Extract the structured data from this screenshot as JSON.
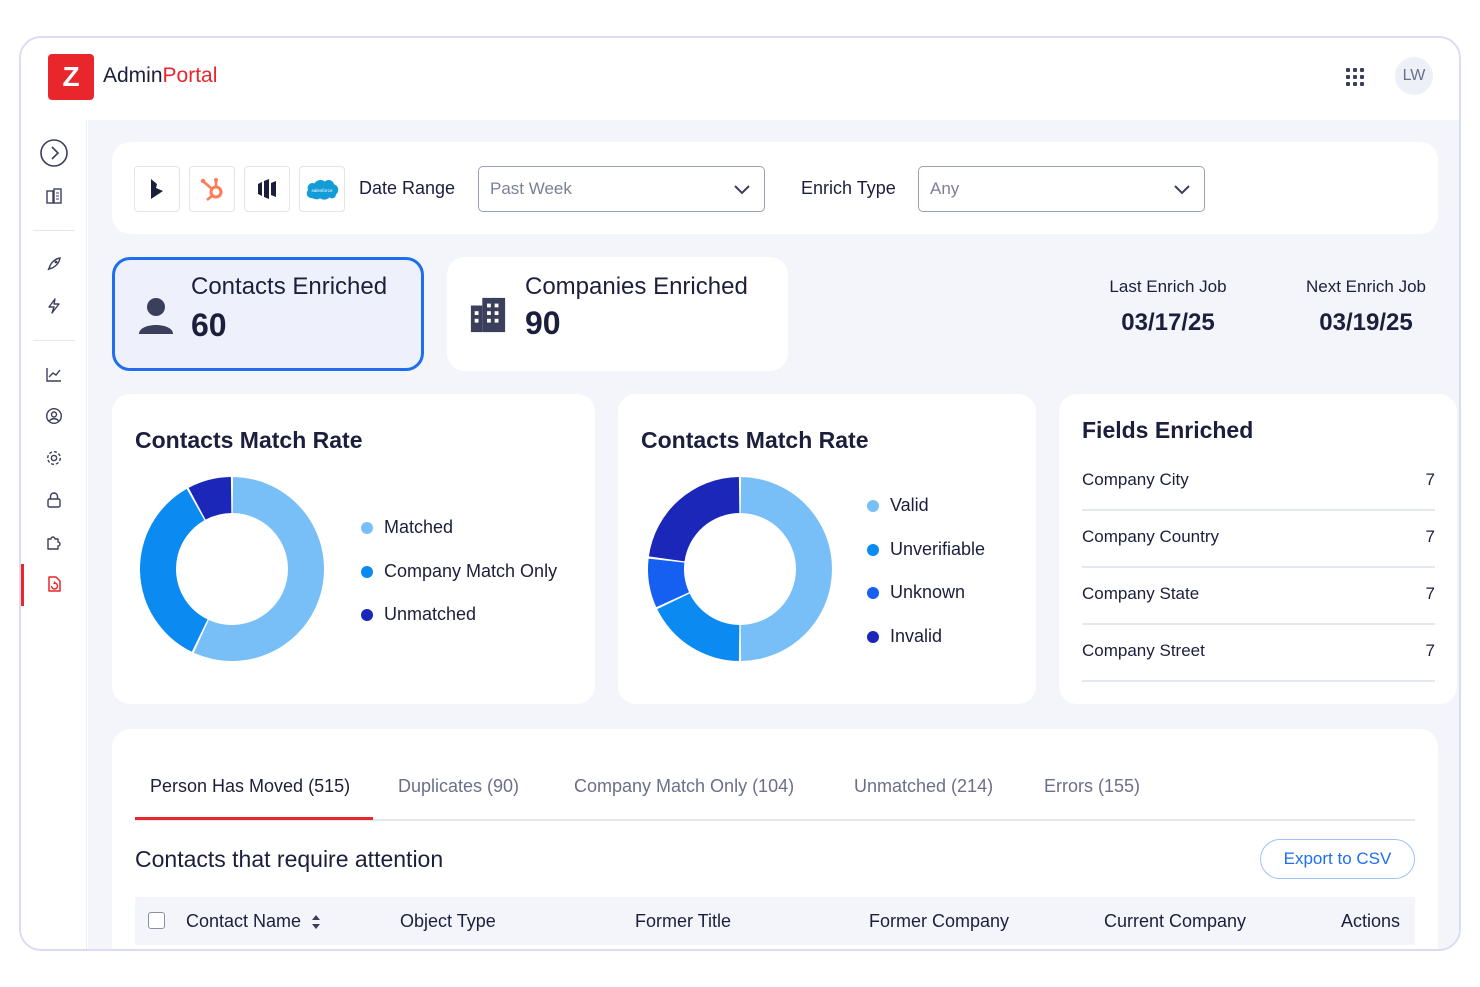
{
  "app": {
    "brand_primary": "Admin",
    "brand_accent": "Portal",
    "logo_glyph": "Z",
    "user_initials": "LW",
    "accent_color": "#e8262b"
  },
  "filters": {
    "integrations": [
      "dynamics-icon",
      "hubspot-icon",
      "marketo-icon",
      "salesforce-icon"
    ],
    "salesforce_text": "salesforce",
    "date_range_label": "Date Range",
    "date_range_value": "Past Week",
    "enrich_type_label": "Enrich Type",
    "enrich_type_value": "Any"
  },
  "stats": {
    "contacts_label": "Contacts Enriched",
    "contacts_value": "60",
    "companies_label": "Companies Enriched",
    "companies_value": "90",
    "last_job_label": "Last Enrich Job",
    "last_job_value": "03/17/25",
    "next_job_label": "Next Enrich Job",
    "next_job_value": "03/19/25"
  },
  "charts": [
    {
      "title": "Contacts Match Rate",
      "type": "pie",
      "legend": [
        {
          "name": "Matched",
          "color": "#78bff8",
          "value": 57
        },
        {
          "name": "Company Match Only",
          "color": "#0b8bf2",
          "value": 35
        },
        {
          "name": "Unmatched",
          "color": "#1a27b8",
          "value": 8
        }
      ]
    },
    {
      "title": "Contacts Match Rate",
      "type": "pie",
      "legend": [
        {
          "name": "Valid",
          "color": "#78bff8",
          "value": 50
        },
        {
          "name": "Unverifiable",
          "color": "#0b8bf2",
          "value": 18
        },
        {
          "name": "Unknown",
          "color": "#1560f0",
          "value": 9
        },
        {
          "name": "Invalid",
          "color": "#1a27b8",
          "value": 23
        }
      ]
    }
  ],
  "chart_data": [
    {
      "type": "pie",
      "title": "Contacts Match Rate",
      "categories": [
        "Matched",
        "Company Match Only",
        "Unmatched"
      ],
      "values": [
        57,
        35,
        8
      ]
    },
    {
      "type": "pie",
      "title": "Contacts Match Rate",
      "categories": [
        "Valid",
        "Unverifiable",
        "Unknown",
        "Invalid"
      ],
      "values": [
        50,
        18,
        9,
        23
      ]
    }
  ],
  "fields": {
    "title": "Fields Enriched",
    "rows": [
      {
        "name": "Company City",
        "value": "7"
      },
      {
        "name": "Company Country",
        "value": "7"
      },
      {
        "name": "Company State",
        "value": "7"
      },
      {
        "name": "Company Street",
        "value": "7"
      }
    ]
  },
  "table": {
    "tabs": [
      "Person Has Moved (515)",
      "Duplicates (90)",
      "Company Match Only (104)",
      "Unmatched (214)",
      "Errors (155)"
    ],
    "section_title": "Contacts that require attention",
    "export_label": "Export to CSV",
    "columns": [
      "Contact Name",
      "Object Type",
      "Former Title",
      "Former Company",
      "Current Company",
      "Actions"
    ]
  }
}
